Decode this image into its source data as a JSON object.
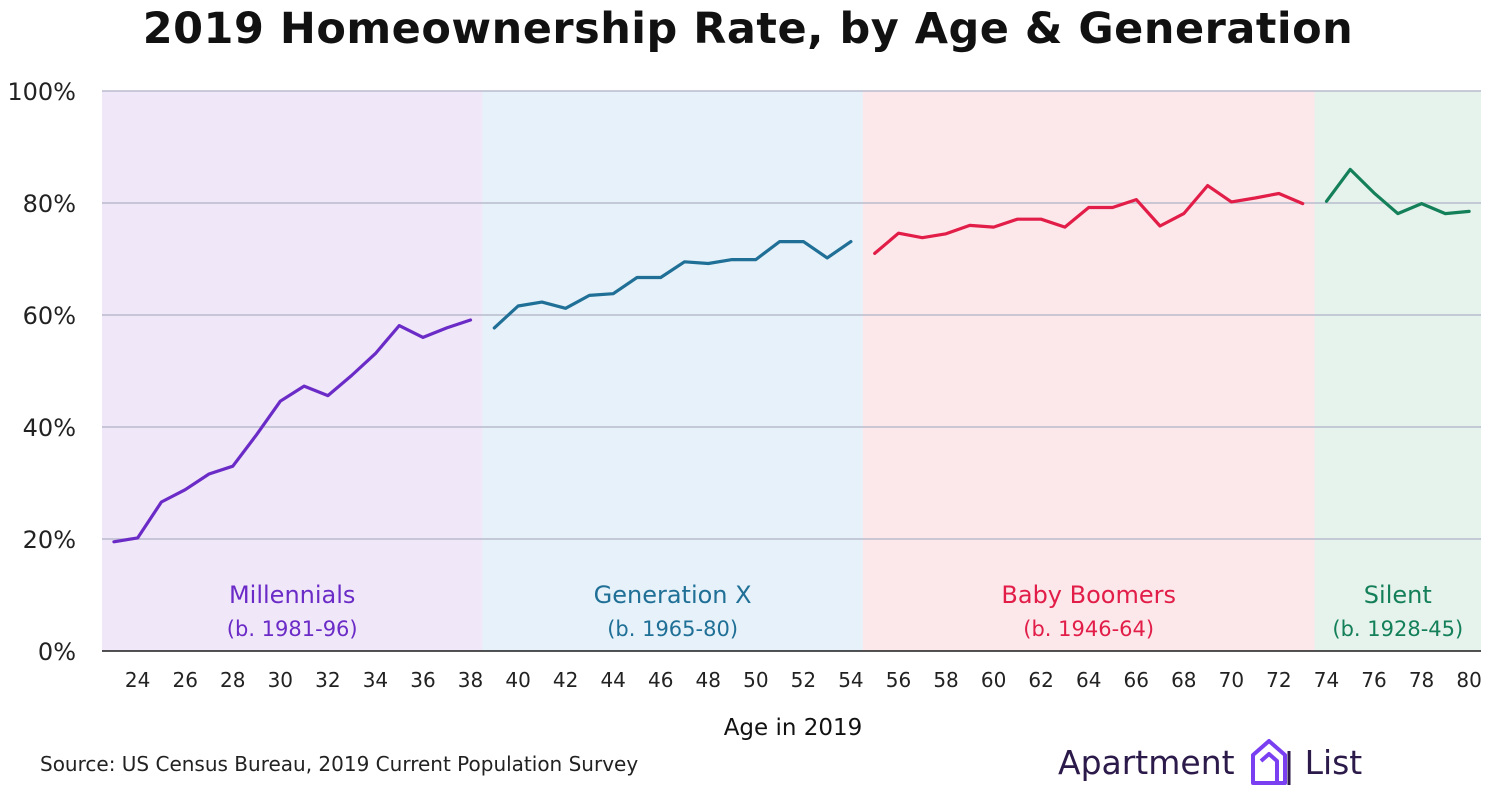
{
  "chart_data": {
    "type": "line",
    "title": "2019 Homeownership Rate, by Age & Generation",
    "xlabel": "Age in 2019",
    "ylabel": "",
    "xlim": [
      23,
      80
    ],
    "ylim": [
      0,
      100
    ],
    "x_ticks": [
      24,
      26,
      28,
      30,
      32,
      34,
      36,
      38,
      40,
      42,
      44,
      46,
      48,
      50,
      52,
      54,
      56,
      58,
      60,
      62,
      64,
      66,
      68,
      70,
      72,
      74,
      76,
      78,
      80
    ],
    "y_ticks": [
      0,
      20,
      40,
      60,
      80,
      100
    ],
    "y_tick_suffix": "%",
    "grid": "horizontal",
    "series": [
      {
        "name": "Millennials",
        "sublabel": "(b. 1981-96)",
        "color": "#6b2bc7",
        "band_color": "#f0e7f8",
        "band": [
          22.5,
          38.5
        ],
        "x": [
          23,
          24,
          25,
          26,
          27,
          28,
          29,
          30,
          31,
          32,
          33,
          34,
          35,
          36,
          37,
          38
        ],
        "values": [
          19.5,
          20.2,
          26.6,
          28.8,
          31.6,
          33.0,
          38.6,
          44.6,
          47.3,
          45.6,
          49.2,
          53.1,
          58.1,
          56.0,
          57.7,
          59.1
        ]
      },
      {
        "name": "Generation X",
        "sublabel": "(b. 1965-80)",
        "color": "#1f6f96",
        "band_color": "#e6f1f9",
        "band": [
          38.5,
          54.5
        ],
        "x": [
          39,
          40,
          41,
          42,
          43,
          44,
          45,
          46,
          47,
          48,
          49,
          50,
          51,
          52,
          53,
          54
        ],
        "values": [
          57.7,
          61.6,
          62.3,
          61.2,
          63.5,
          63.8,
          66.7,
          66.7,
          69.5,
          69.2,
          69.9,
          69.9,
          73.1,
          73.1,
          70.2,
          73.1
        ]
      },
      {
        "name": "Baby Boomers",
        "sublabel": "(b. 1946-64)",
        "color": "#e11d48",
        "band_color": "#fce7ea",
        "band": [
          54.5,
          73.5
        ],
        "x": [
          55,
          56,
          57,
          58,
          59,
          60,
          61,
          62,
          63,
          64,
          65,
          66,
          67,
          68,
          69,
          70,
          71,
          72,
          73
        ],
        "values": [
          71.0,
          74.6,
          73.8,
          74.5,
          76.0,
          75.7,
          77.1,
          77.1,
          75.7,
          79.2,
          79.2,
          80.6,
          75.9,
          78.1,
          83.1,
          80.2,
          80.9,
          81.7,
          79.9
        ]
      },
      {
        "name": "Silent",
        "sublabel": "(b. 1928-45)",
        "color": "#14805a",
        "band_color": "#e6f2ec",
        "band": [
          73.5,
          80.5
        ],
        "x": [
          74,
          75,
          76,
          77,
          78,
          79,
          80
        ],
        "values": [
          80.3,
          86.0,
          81.8,
          78.1,
          79.9,
          78.1,
          78.5
        ]
      }
    ],
    "gridline_color": "#b9bccd",
    "axis_color": "#1a1a1a"
  },
  "footer": {
    "source": "Source: US Census Bureau, 2019 Current Population Survey"
  },
  "logo": {
    "word_left": "Apartment",
    "word_right": "List",
    "icon": "building-outline-icon"
  }
}
